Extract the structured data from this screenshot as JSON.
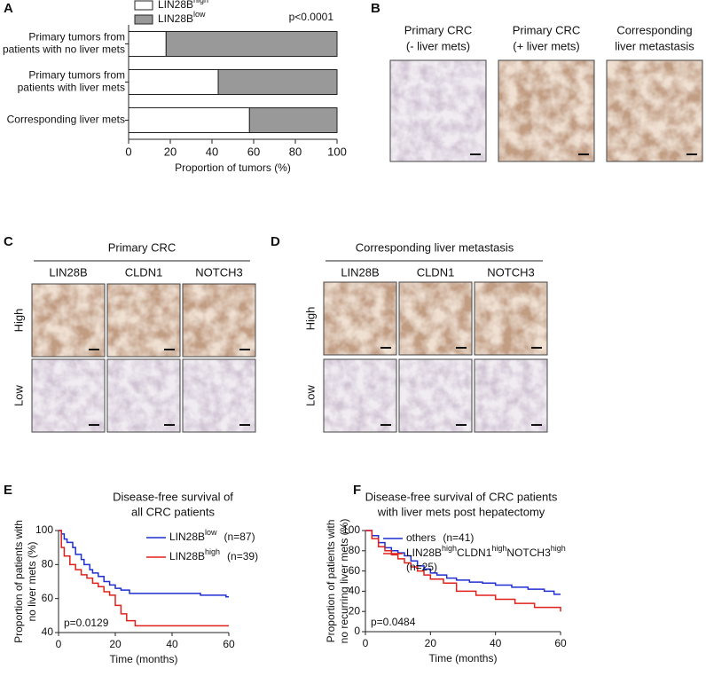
{
  "panel_letters": [
    "A",
    "B",
    "C",
    "D",
    "E",
    "F"
  ],
  "image_panels": {
    "B": {
      "captions": [
        [
          "Primary CRC",
          "(- liver mets)"
        ],
        [
          "Primary CRC",
          "(+ liver mets)"
        ],
        [
          "Corresponding",
          "liver metastasis"
        ]
      ]
    },
    "C": {
      "header": "Primary CRC",
      "columns": [
        "LIN28B",
        "CLDN1",
        "NOTCH3"
      ],
      "rows": [
        "High",
        "Low"
      ]
    },
    "D": {
      "header": "Corresponding liver metastasis",
      "columns": [
        "LIN28B",
        "CLDN1",
        "NOTCH3"
      ],
      "rows": [
        "High",
        "Low"
      ]
    }
  },
  "chart_data": [
    {
      "type": "bar",
      "orientation": "horizontal",
      "stacked": true,
      "categories": [
        [
          "Primary tumors from",
          "patients with no liver mets"
        ],
        [
          "Primary tumors from",
          "patients with liver mets"
        ],
        [
          "Corresponding liver mets"
        ]
      ],
      "series": [
        {
          "name": [
            {
              "text": "LIN28B"
            },
            {
              "sup": "high"
            }
          ],
          "color": "#ffffff",
          "values": [
            18,
            43,
            58
          ]
        },
        {
          "name": [
            {
              "text": "LIN28B"
            },
            {
              "sup": "low"
            }
          ],
          "color": "#999999",
          "values": [
            82,
            57,
            42
          ]
        }
      ],
      "annotation": "p<0.0001",
      "x_label": "Proportion of tumors (%)",
      "xlim": [
        0,
        100
      ],
      "xticks": [
        0,
        20,
        40,
        60,
        80,
        100
      ]
    },
    {
      "type": "step",
      "title": [
        "Disease-free survival of",
        "all CRC patients"
      ],
      "y_label": [
        "Proportion of patients with",
        "no liver mets (%)"
      ],
      "x_label": "Time (months)",
      "annotation": "p=0.0129",
      "series": [
        {
          "name": [
            {
              "text": "LIN28B"
            },
            {
              "sup": "low"
            }
          ],
          "n": "(n=87)",
          "color": "#1f2fd1",
          "x": [
            0,
            1,
            2,
            3,
            5,
            6,
            8,
            9,
            11,
            12,
            14,
            16,
            18,
            20,
            22,
            25,
            50,
            59,
            60
          ],
          "values": [
            100,
            98,
            95,
            93,
            90,
            86,
            83,
            80,
            77,
            75,
            73,
            70,
            68,
            66,
            65,
            63,
            62,
            61,
            61
          ]
        },
        {
          "name": [
            {
              "text": "LIN28B"
            },
            {
              "sup": "high"
            }
          ],
          "n": "(n=39)",
          "color": "#e0201b",
          "x": [
            0,
            1,
            2,
            4,
            6,
            8,
            10,
            12,
            14,
            16,
            18,
            20,
            22,
            24,
            27,
            60
          ],
          "values": [
            100,
            90,
            85,
            80,
            77,
            74,
            72,
            69,
            67,
            64,
            62,
            56,
            51,
            47,
            44,
            44
          ]
        }
      ],
      "xlim": [
        0,
        60
      ],
      "xticks": [
        0,
        20,
        40,
        60
      ],
      "ylim": [
        40,
        100
      ],
      "yticks": [
        40,
        60,
        80,
        100
      ]
    },
    {
      "type": "step",
      "title": [
        "Disease-free survival of CRC patients",
        "with liver mets post hepatectomy"
      ],
      "y_label": [
        "Proportion of patients with",
        "no recurring liver mets (%)"
      ],
      "x_label": "Time (months)",
      "annotation": "p=0.0484",
      "series": [
        {
          "name": [
            {
              "text": "others"
            }
          ],
          "n": "(n=41)",
          "color": "#1f2fd1",
          "x": [
            0,
            2,
            4,
            6,
            8,
            10,
            12,
            14,
            16,
            18,
            20,
            22,
            25,
            28,
            32,
            36,
            40,
            45,
            50,
            55,
            58,
            60
          ],
          "values": [
            100,
            95,
            88,
            83,
            80,
            78,
            75,
            70,
            65,
            62,
            58,
            56,
            53,
            51,
            49,
            48,
            46,
            44,
            42,
            40,
            37,
            37
          ]
        },
        {
          "name": [
            {
              "text": "LIN28B"
            },
            {
              "sup": "high"
            },
            {
              "text": "CLDN1"
            },
            {
              "sup": "high"
            },
            {
              "text": "NOTCH3"
            },
            {
              "sup": "high"
            }
          ],
          "n": "(n=25)",
          "color": "#e0201b",
          "x": [
            0,
            2,
            4,
            6,
            8,
            10,
            12,
            14,
            16,
            18,
            20,
            24,
            28,
            34,
            40,
            46,
            52,
            58,
            60
          ],
          "values": [
            100,
            92,
            84,
            80,
            76,
            72,
            68,
            64,
            60,
            56,
            52,
            48,
            40,
            36,
            32,
            28,
            24,
            24,
            20
          ]
        }
      ],
      "xlim": [
        0,
        60
      ],
      "xticks": [
        0,
        20,
        40,
        60
      ],
      "ylim": [
        0,
        100
      ],
      "yticks": [
        0,
        20,
        40,
        60,
        80,
        100
      ]
    }
  ]
}
